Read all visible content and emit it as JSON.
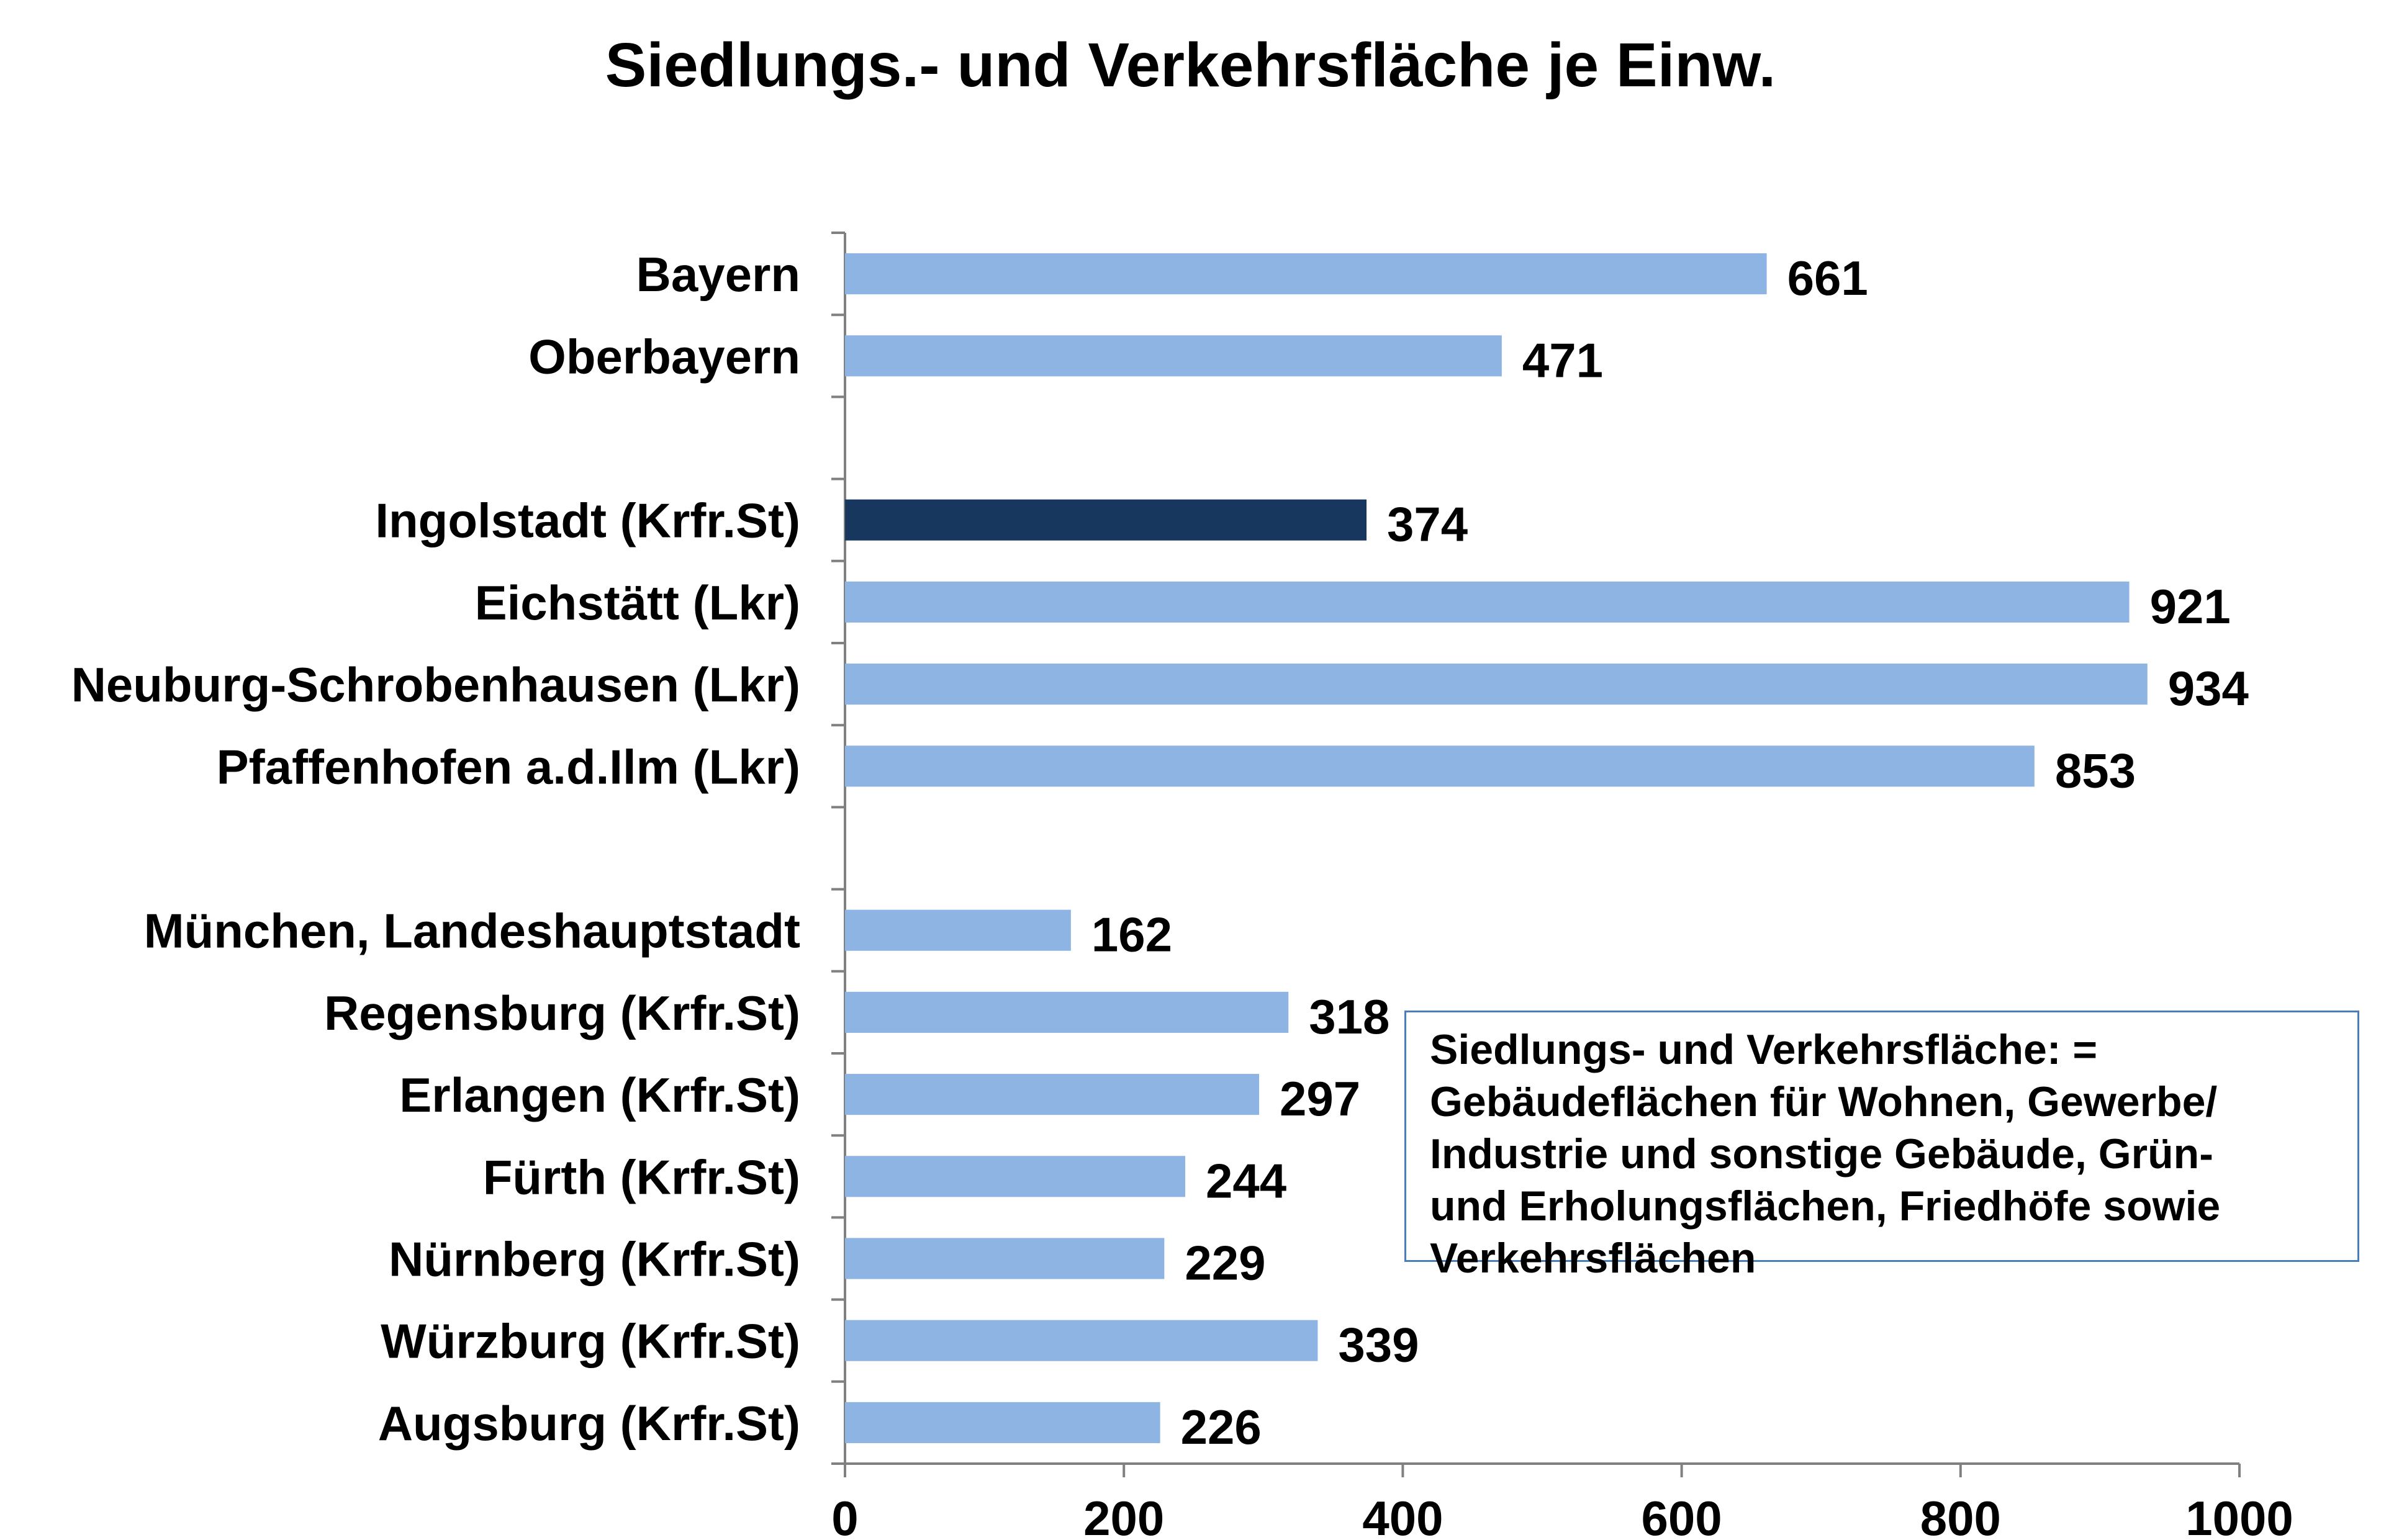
{
  "chart_data": {
    "type": "bar",
    "orientation": "horizontal",
    "title": "Siedlungs.- und Verkehrsfläche je Einw.",
    "xlabel": "",
    "ylabel": "",
    "xlim": [
      0,
      1000
    ],
    "x_ticks": [
      "0",
      "200",
      "400",
      "600",
      "800",
      "1000"
    ],
    "grid": false,
    "data_labels": true,
    "groups": [
      {
        "rows": [
          {
            "category": "Bayern",
            "value": 661
          },
          {
            "category": "Oberbayern",
            "value": 471
          }
        ]
      },
      {
        "rows": [
          {
            "category": "Ingolstadt (Krfr.St)",
            "value": 374,
            "highlight": true
          },
          {
            "category": "Eichstätt (Lkr)",
            "value": 921
          },
          {
            "category": "Neuburg-Schrobenhausen (Lkr)",
            "value": 934
          },
          {
            "category": "Pfaffenhofen a.d.Ilm (Lkr)",
            "value": 853
          }
        ]
      },
      {
        "rows": [
          {
            "category": "München, Landeshauptstadt",
            "value": 162
          },
          {
            "category": "Regensburg (Krfr.St)",
            "value": 318
          },
          {
            "category": "Erlangen (Krfr.St)",
            "value": 297
          },
          {
            "category": "Fürth (Krfr.St)",
            "value": 244
          },
          {
            "category": "Nürnberg (Krfr.St)",
            "value": 229
          },
          {
            "category": "Würzburg (Krfr.St)",
            "value": 339
          },
          {
            "category": "Augsburg (Krfr.St)",
            "value": 226
          }
        ]
      }
    ],
    "colors": {
      "bar": "#8eb4e3",
      "highlight": "#17375e",
      "axis": "#808080"
    }
  },
  "note": {
    "text": "Siedlungs- und Verkehrsfläche: =\nGebäudeflächen für Wohnen, Gewerbe/\nIndustrie und sonstige Gebäude, Grün-\nund Erholungsflächen, Friedhöfe sowie\nVerkehrsflächen"
  }
}
